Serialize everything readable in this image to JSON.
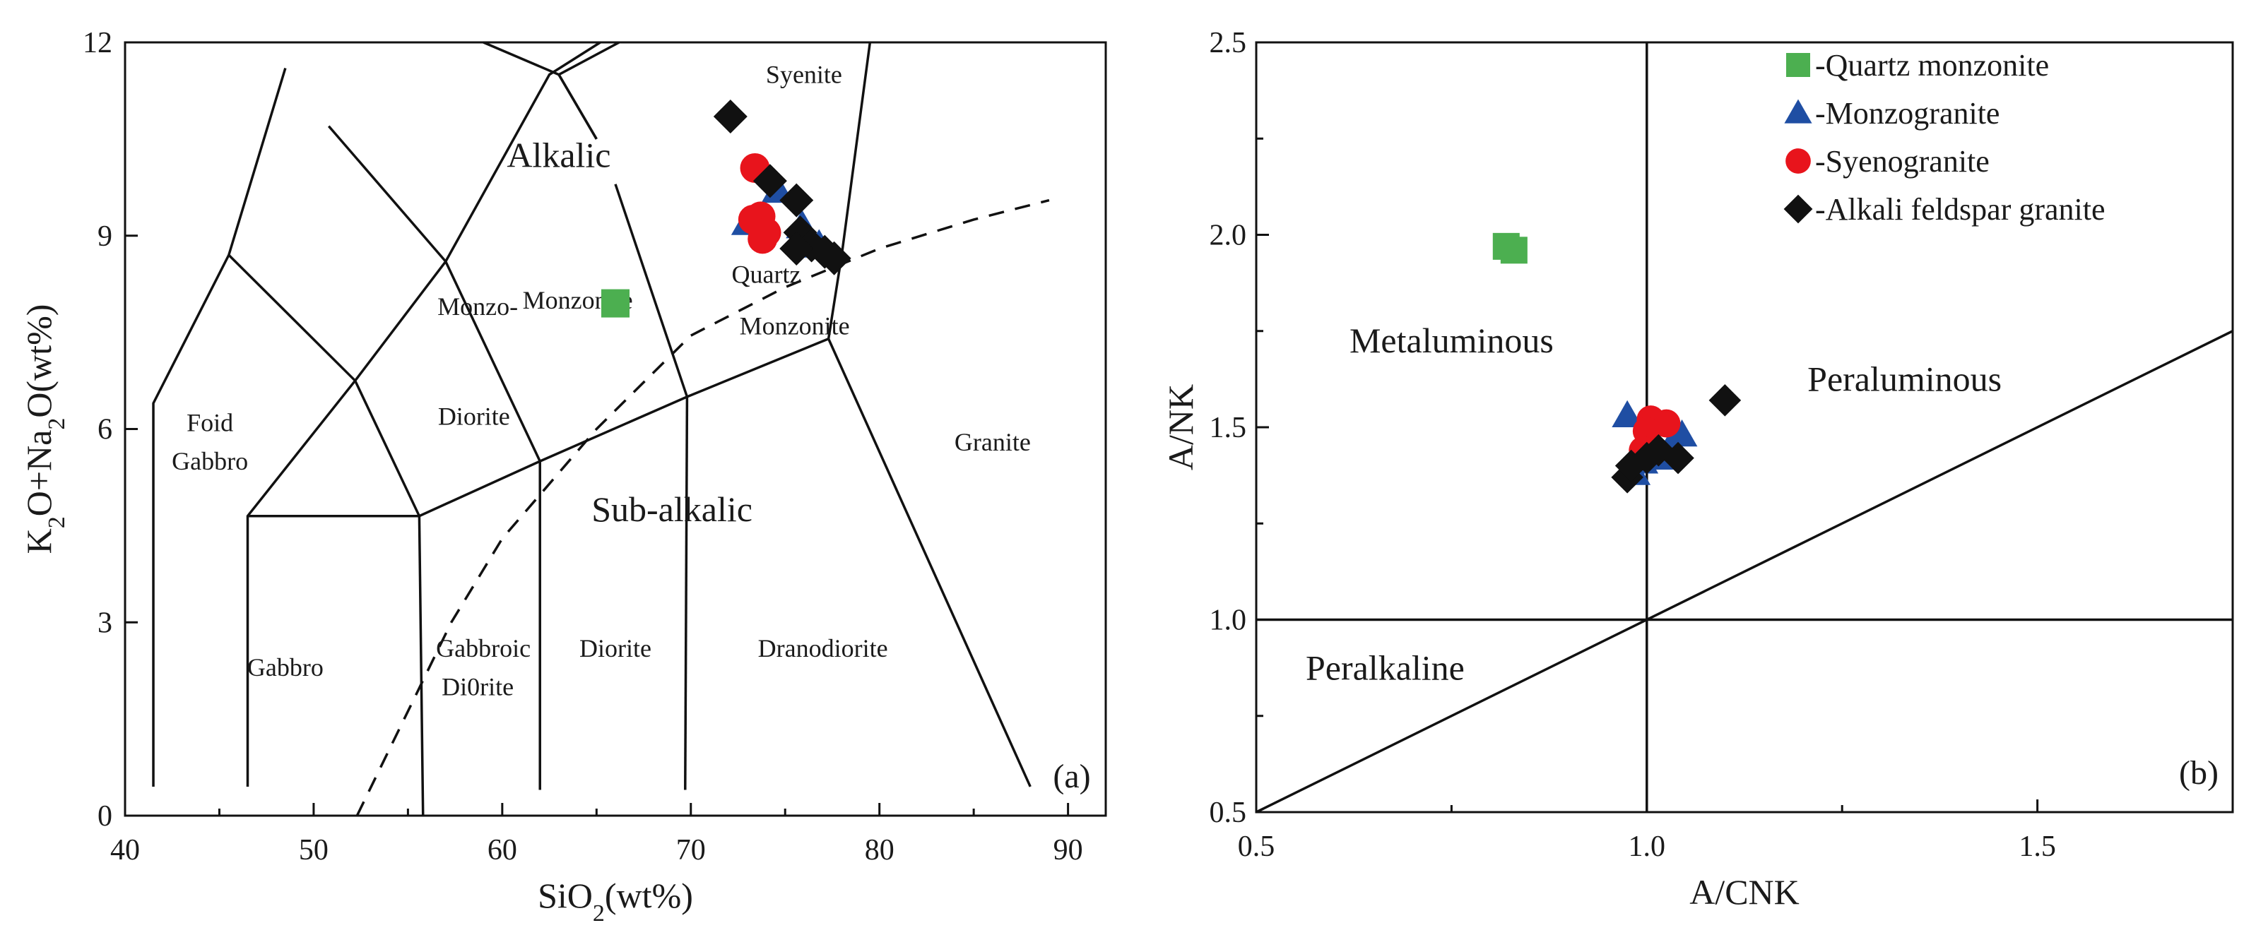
{
  "chart_data": [
    {
      "type": "scatter",
      "panel_label": "(a)",
      "title": "",
      "xlabel": "SiO2(wt%)",
      "xlabel_main": "SiO",
      "xlabel_sub": "2",
      "xlabel_tail": "(wt%)",
      "ylabel": "K2O+Na2O(wt%)",
      "ylabel_parts": {
        "a": "K",
        "a_sub": "2",
        "b": "O+Na",
        "b_sub": "2",
        "c": "O(wt%)"
      },
      "xlim": [
        40,
        92
      ],
      "ylim": [
        0,
        12
      ],
      "xticks": [
        40,
        50,
        60,
        70,
        80,
        90
      ],
      "xtick_labels": [
        "40",
        "50",
        "60",
        "70",
        "80",
        "90"
      ],
      "yticks": [
        0,
        3,
        6,
        9,
        12
      ],
      "ytick_labels": [
        "0",
        "3",
        "6",
        "9",
        "12"
      ],
      "grid": false,
      "field_labels": [
        {
          "text": "Foid",
          "x": 44.5,
          "y": 6.1,
          "size": "normal"
        },
        {
          "text": "Gabbro",
          "x": 44.5,
          "y": 5.5,
          "size": "normal"
        },
        {
          "text": "Monzo-",
          "x": 58.7,
          "y": 7.9,
          "size": "normal"
        },
        {
          "text": "Diorite",
          "x": 58.5,
          "y": 6.2,
          "size": "normal"
        },
        {
          "text": "Monzonite",
          "x": 64.0,
          "y": 8.0,
          "size": "normal"
        },
        {
          "text": "Alkalic",
          "x": 63.0,
          "y": 10.2,
          "size": "big"
        },
        {
          "text": "Syenite",
          "x": 76.0,
          "y": 11.5,
          "size": "normal"
        },
        {
          "text": "Quartz",
          "x": 74.0,
          "y": 8.4,
          "size": "normal"
        },
        {
          "text": "Monzonite",
          "x": 75.5,
          "y": 7.6,
          "size": "normal"
        },
        {
          "text": "Granite",
          "x": 86.0,
          "y": 5.8,
          "size": "normal"
        },
        {
          "text": "Sub-alkalic",
          "x": 69.0,
          "y": 4.7,
          "size": "big"
        },
        {
          "text": "Gabbro",
          "x": 48.5,
          "y": 2.3,
          "size": "normal"
        },
        {
          "text": "Gabbroic",
          "x": 59.0,
          "y": 2.6,
          "size": "normal"
        },
        {
          "text": "Di0rite",
          "x": 58.7,
          "y": 2.0,
          "size": "normal"
        },
        {
          "text": "Diorite",
          "x": 66.0,
          "y": 2.6,
          "size": "normal"
        },
        {
          "text": "Dranodiorite",
          "x": 77.0,
          "y": 2.6,
          "size": "normal"
        }
      ],
      "field_boundaries": [
        [
          [
            41.5,
            0.45
          ],
          [
            41.5,
            6.4
          ],
          [
            45.5,
            8.7
          ],
          [
            48.5,
            11.6
          ]
        ],
        [
          [
            46.5,
            0.45
          ],
          [
            46.5,
            4.65
          ],
          [
            52.2,
            6.75
          ],
          [
            57.0,
            8.6
          ],
          [
            62.5,
            11.5
          ],
          [
            65.2,
            12.0
          ]
        ],
        [
          [
            52.3,
            0.0
          ],
          [
            57.3,
            3.0
          ],
          [
            60.0,
            4.3
          ],
          [
            65.0,
            6.0
          ],
          [
            70.0,
            7.45
          ],
          [
            75.0,
            8.2
          ],
          [
            80.0,
            8.8
          ],
          [
            85.0,
            9.25
          ],
          [
            89.0,
            9.55
          ]
        ],
        [
          [
            52.2,
            6.75
          ],
          [
            55.6,
            4.65
          ]
        ],
        [
          [
            45.5,
            8.7
          ],
          [
            52.2,
            6.75
          ]
        ],
        [
          [
            50.8,
            10.7
          ],
          [
            57.0,
            8.6
          ]
        ],
        [
          [
            46.5,
            4.65
          ],
          [
            55.6,
            4.65
          ],
          [
            62.0,
            5.5
          ],
          [
            69.8,
            6.5
          ],
          [
            77.3,
            7.4
          ]
        ],
        [
          [
            55.6,
            4.65
          ],
          [
            55.8,
            0.0
          ]
        ],
        [
          [
            62.0,
            5.5
          ],
          [
            62.0,
            0.4
          ]
        ],
        [
          [
            69.8,
            6.5
          ],
          [
            69.7,
            0.4
          ]
        ],
        [
          [
            57.0,
            8.6
          ],
          [
            62.0,
            5.5
          ]
        ],
        [
          [
            63.0,
            11.5
          ],
          [
            65.0,
            10.5
          ]
        ],
        [
          [
            59.0,
            12.0
          ],
          [
            63.0,
            11.5
          ],
          [
            66.2,
            12.0
          ]
        ],
        [
          [
            63.0,
            11.5
          ],
          [
            65.0,
            10.5
          ]
        ],
        [
          [
            69.8,
            6.5
          ],
          [
            66.0,
            9.8
          ]
        ],
        [
          [
            77.3,
            7.4
          ],
          [
            78.0,
            8.7
          ],
          [
            79.5,
            12.0
          ]
        ],
        [
          [
            77.3,
            7.4
          ],
          [
            88.0,
            0.45
          ]
        ]
      ],
      "series": [
        {
          "name": "Quartz monzonite",
          "marker": "square",
          "color": "#4caf50",
          "points": [
            [
              66.0,
              7.95
            ]
          ]
        },
        {
          "name": "Monzogranite",
          "marker": "triangle",
          "color": "#1f4ea3",
          "points": [
            [
              73.0,
              9.2
            ],
            [
              74.6,
              9.7
            ],
            [
              75.9,
              9.15
            ],
            [
              76.2,
              8.95
            ],
            [
              76.8,
              8.85
            ]
          ]
        },
        {
          "name": "Syenogranite",
          "marker": "circle",
          "color": "#e8141c",
          "points": [
            [
              73.4,
              10.05
            ],
            [
              73.3,
              9.25
            ],
            [
              73.7,
              9.3
            ],
            [
              74.0,
              9.05
            ],
            [
              73.8,
              8.95
            ]
          ]
        },
        {
          "name": "Alkali feldspar granite",
          "marker": "diamond",
          "color": "#111111",
          "points": [
            [
              72.1,
              10.85
            ],
            [
              74.2,
              9.85
            ],
            [
              75.6,
              9.55
            ],
            [
              75.8,
              9.05
            ],
            [
              76.4,
              8.85
            ],
            [
              77.1,
              8.75
            ],
            [
              77.6,
              8.65
            ],
            [
              75.6,
              8.8
            ]
          ]
        }
      ]
    },
    {
      "type": "scatter",
      "panel_label": "(b)",
      "title": "",
      "xlabel": "A/CNK",
      "ylabel": "A/NK",
      "xlim": [
        0.5,
        1.75
      ],
      "ylim": [
        0.5,
        2.5
      ],
      "xticks": [
        0.5,
        1.0,
        1.5
      ],
      "xtick_labels": [
        "0.5",
        "1.0",
        "1.5"
      ],
      "yticks": [
        0.5,
        1.0,
        1.5,
        2.0,
        2.5
      ],
      "ytick_labels": [
        "0.5",
        "1.0",
        "1.5",
        "2.0",
        "2.5"
      ],
      "grid": false,
      "field_labels": [
        {
          "text": "Metaluminous",
          "x": 0.75,
          "y": 1.72
        },
        {
          "text": "Peraluminous",
          "x": 1.33,
          "y": 1.62
        },
        {
          "text": "Peralkaline",
          "x": 0.665,
          "y": 0.87
        }
      ],
      "field_boundaries": [
        [
          [
            1.0,
            0.5
          ],
          [
            1.0,
            2.5
          ]
        ],
        [
          [
            0.5,
            1.0
          ],
          [
            1.75,
            1.0
          ]
        ],
        [
          [
            0.5,
            0.5
          ],
          [
            1.75,
            1.75
          ]
        ]
      ],
      "series": [
        {
          "name": "Quartz monzonite",
          "marker": "square",
          "color": "#4caf50",
          "points": [
            [
              0.82,
              1.97
            ],
            [
              0.83,
              1.96
            ]
          ]
        },
        {
          "name": "Monzogranite",
          "marker": "triangle",
          "color": "#1f4ea3",
          "points": [
            [
              0.975,
              1.53
            ],
            [
              0.985,
              1.38
            ],
            [
              1.02,
              1.42
            ],
            [
              1.045,
              1.48
            ],
            [
              1.03,
              1.45
            ],
            [
              0.995,
              1.41
            ]
          ]
        },
        {
          "name": "Syenogranite",
          "marker": "circle",
          "color": "#e8141c",
          "points": [
            [
              1.005,
              1.52
            ],
            [
              1.025,
              1.51
            ],
            [
              1.0,
              1.49
            ],
            [
              0.995,
              1.44
            ],
            [
              1.0,
              1.43
            ]
          ]
        },
        {
          "name": "Alkali feldspar granite",
          "marker": "diamond",
          "color": "#111111",
          "points": [
            [
              1.1,
              1.57
            ],
            [
              0.975,
              1.37
            ],
            [
              0.98,
              1.4
            ],
            [
              1.04,
              1.42
            ],
            [
              1.0,
              1.42
            ],
            [
              1.015,
              1.44
            ]
          ]
        }
      ],
      "legend": {
        "placement": "top-right",
        "entries": [
          {
            "label": "-Quartz monzonite",
            "marker": "square",
            "color": "#4caf50"
          },
          {
            "label": "-Monzogranite",
            "marker": "triangle",
            "color": "#1f4ea3"
          },
          {
            "label": "-Syenogranite",
            "marker": "circle",
            "color": "#e8141c"
          },
          {
            "label": "-Alkali feldspar granite",
            "marker": "diamond",
            "color": "#111111"
          }
        ]
      }
    }
  ]
}
